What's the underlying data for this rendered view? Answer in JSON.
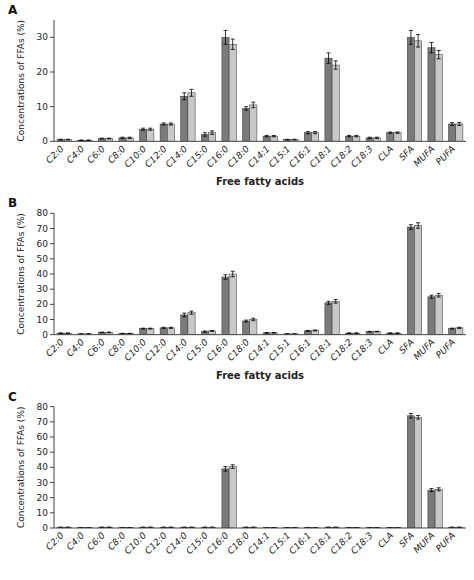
{
  "chart_data": [
    {
      "type": "bar",
      "title": "A",
      "x_label": "Free fatty acids",
      "y_label": "Concentrations of FFAs (%)",
      "categories": [
        "C2:0",
        "C4:0",
        "C6:0",
        "C8:0",
        "C10:0",
        "C12:0",
        "C14:0",
        "C15:0",
        "C16:0",
        "C18:0",
        "C14:1",
        "C15:1",
        "C16:1",
        "C18:1",
        "C18:2",
        "C18:3",
        "CLA",
        "SFA",
        "MUFA",
        "PUFA"
      ],
      "ylim": [
        0,
        35
      ],
      "yticks": [
        0,
        10,
        20,
        30
      ],
      "series": [
        {
          "color": "#7a7a7a",
          "values": [
            0.5,
            0.3,
            0.8,
            1.0,
            3.5,
            5.0,
            13.0,
            2.0,
            30.0,
            9.5,
            1.5,
            0.5,
            2.5,
            24.0,
            1.5,
            1.0,
            2.5,
            30.0,
            27.0,
            5.0
          ],
          "errors": [
            0.1,
            0.1,
            0.1,
            0.2,
            0.3,
            0.3,
            1.0,
            0.5,
            2.0,
            0.5,
            0.2,
            0.1,
            0.3,
            1.5,
            0.2,
            0.2,
            0.2,
            2.0,
            1.5,
            0.4
          ]
        },
        {
          "color": "#c8c8c8",
          "values": [
            0.5,
            0.3,
            0.8,
            1.0,
            3.5,
            5.0,
            14.0,
            2.5,
            28.0,
            10.5,
            1.5,
            0.5,
            2.5,
            22.0,
            1.5,
            1.0,
            2.5,
            29.0,
            25.0,
            5.0
          ],
          "errors": [
            0.1,
            0.1,
            0.1,
            0.2,
            0.3,
            0.3,
            1.0,
            0.5,
            1.5,
            0.8,
            0.2,
            0.1,
            0.3,
            1.2,
            0.2,
            0.2,
            0.2,
            1.8,
            1.2,
            0.4
          ]
        }
      ]
    },
    {
      "type": "bar",
      "title": "B",
      "x_label": "Free fatty acids",
      "y_label": "Concentrations of FFAs (%)",
      "categories": [
        "C2:0",
        "C4:0",
        "C6:0",
        "C8:0",
        "C10:0",
        "C12:0",
        "C14:0",
        "C15:0",
        "C16:0",
        "C18:0",
        "C14:1",
        "C15:1",
        "C16:1",
        "C18:1",
        "C18:2",
        "C18:3",
        "CLA",
        "SFA",
        "MUFA",
        "PUFA"
      ],
      "ylim": [
        0,
        80
      ],
      "yticks": [
        0,
        10,
        20,
        30,
        40,
        50,
        60,
        70,
        80
      ],
      "series": [
        {
          "color": "#7a7a7a",
          "values": [
            1.0,
            0.5,
            1.5,
            0.8,
            4.0,
            4.5,
            13.0,
            2.0,
            38.0,
            9.0,
            1.2,
            0.5,
            2.5,
            21.0,
            1.0,
            2.0,
            1.0,
            71.0,
            25.0,
            4.0
          ],
          "errors": [
            0.1,
            0.1,
            0.2,
            0.1,
            0.3,
            0.4,
            1.2,
            0.4,
            1.5,
            0.6,
            0.2,
            0.1,
            0.3,
            1.0,
            0.2,
            0.2,
            0.2,
            1.5,
            1.0,
            0.3
          ]
        },
        {
          "color": "#c8c8c8",
          "values": [
            1.0,
            0.5,
            1.5,
            0.8,
            4.0,
            4.5,
            14.5,
            2.5,
            40.0,
            10.0,
            1.2,
            0.5,
            2.8,
            22.0,
            1.0,
            2.0,
            1.0,
            72.0,
            26.0,
            4.5
          ],
          "errors": [
            0.1,
            0.1,
            0.2,
            0.1,
            0.3,
            0.4,
            1.0,
            0.3,
            1.8,
            0.8,
            0.2,
            0.1,
            0.3,
            1.2,
            0.2,
            0.2,
            0.2,
            1.8,
            1.2,
            0.4
          ]
        }
      ]
    },
    {
      "type": "bar",
      "title": "C",
      "y_label": "Concentrations of FFAs (%)",
      "categories": [
        "C2:0",
        "C4:0",
        "C6:0",
        "C8:0",
        "C10:0",
        "C12:0",
        "C14:0",
        "C15:0",
        "C16:0",
        "C18:0",
        "C14:1",
        "C15:1",
        "C16:1",
        "C18:1",
        "C18:2",
        "C18:3",
        "CLA",
        "SFA",
        "MUFA",
        "PUFA"
      ],
      "ylim": [
        0,
        80
      ],
      "yticks": [
        0,
        10,
        20,
        30,
        40,
        50,
        60,
        70,
        80
      ],
      "series": [
        {
          "color": "#7a7a7a",
          "values": [
            0.5,
            0.3,
            0.5,
            0.3,
            0.5,
            0.5,
            0.5,
            0.5,
            39.0,
            0.5,
            0.3,
            0.3,
            0.3,
            0.5,
            0.3,
            0.3,
            0.3,
            74.0,
            25.0,
            0.5
          ],
          "errors": [
            0.05,
            0.05,
            0.05,
            0.05,
            0.05,
            0.05,
            0.05,
            0.05,
            1.5,
            0.05,
            0.05,
            0.05,
            0.05,
            0.05,
            0.05,
            0.05,
            0.05,
            1.5,
            1.0,
            0.05
          ]
        },
        {
          "color": "#c8c8c8",
          "values": [
            0.5,
            0.3,
            0.5,
            0.3,
            0.5,
            0.5,
            0.5,
            0.5,
            40.5,
            0.5,
            0.3,
            0.3,
            0.3,
            0.5,
            0.3,
            0.3,
            0.3,
            73.0,
            25.5,
            0.5
          ],
          "errors": [
            0.05,
            0.05,
            0.05,
            0.05,
            0.05,
            0.05,
            0.05,
            0.05,
            1.2,
            0.05,
            0.05,
            0.05,
            0.05,
            0.05,
            0.05,
            0.05,
            0.05,
            1.2,
            1.0,
            0.05
          ]
        }
      ]
    }
  ]
}
